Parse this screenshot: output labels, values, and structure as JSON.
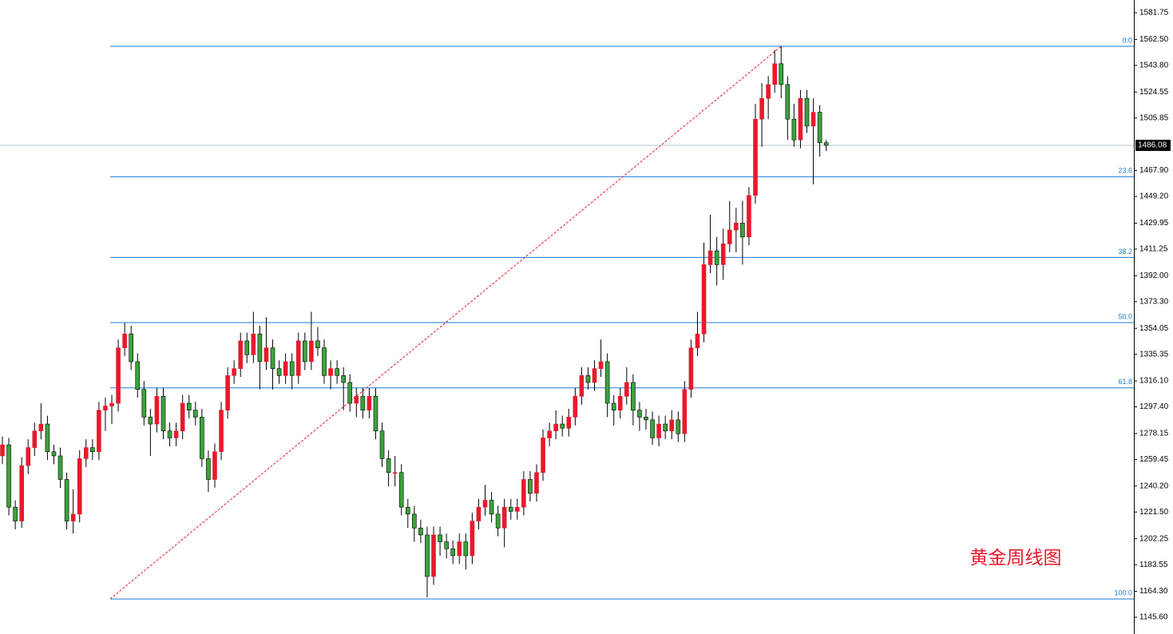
{
  "chart_data": {
    "type": "candlestick",
    "annotation": "黄金周线图",
    "up_color": "#e8192c",
    "down_color": "#3aa43a",
    "ylim": [
      1133.5,
      1590.97
    ],
    "yticks": [
      1581.75,
      {
        "value": 1562.5,
        "label": "1562.50"
      },
      {
        "value": 1543.8,
        "label": "1543.80"
      },
      1524.55,
      1505.85,
      1467.9,
      1449.2,
      1429.95,
      1411.25,
      {
        "value": 1392,
        "label": "1392.00"
      },
      {
        "value": 1373.3,
        "label": "1373.30"
      },
      1354.05,
      1335.35,
      {
        "value": 1316.1,
        "label": "1316.10"
      },
      {
        "value": 1297.4,
        "label": "1297.40"
      },
      1278.15,
      1259.45,
      {
        "value": 1240.2,
        "label": "1240.20"
      },
      {
        "value": 1221.5,
        "label": "1221.50"
      },
      1202.25,
      1183.55,
      {
        "value": 1164.3,
        "label": "1164.30"
      },
      {
        "value": 1145.6,
        "label": "1145.60"
      }
    ],
    "yticks_fix": [
      {
        "value": 1467.9,
        "label": "1467.90"
      },
      {
        "value": 1449.2,
        "label": "1449.20"
      }
    ],
    "current_price": 1486.08,
    "fib_levels": [
      {
        "value": 0,
        "label": "0.0"
      },
      23.6,
      38.2,
      {
        "value": 50,
        "label": "50.0"
      },
      61.8,
      {
        "value": 100,
        "label": "100.0"
      }
    ],
    "fib_prices": [
      1557.55,
      1463.45,
      1405.23,
      1358.18,
      1311.12,
      1158.8
    ],
    "ohlc": [
      [
        1262,
        1276,
        1256,
        1270
      ],
      [
        1270,
        1275,
        1219,
        1225
      ],
      [
        1225,
        1230,
        1209,
        1215
      ],
      [
        1215,
        1261,
        1210,
        1255
      ],
      [
        1255,
        1274,
        1249,
        1268
      ],
      [
        1268,
        1286,
        1262,
        1280
      ],
      [
        1280,
        1300,
        1274,
        1285
      ],
      [
        1285,
        1291,
        1259,
        1265
      ],
      [
        1265,
        1270,
        1256,
        1262
      ],
      [
        1262,
        1268,
        1239,
        1245
      ],
      [
        1245,
        1250,
        1209,
        1215
      ],
      [
        1215,
        1238,
        1206,
        1220
      ],
      [
        1220,
        1266,
        1214,
        1260
      ],
      [
        1260,
        1274,
        1254,
        1268
      ],
      [
        1268,
        1274,
        1259,
        1265
      ],
      [
        1265,
        1301,
        1259,
        1295
      ],
      [
        1295,
        1304,
        1280,
        1298
      ],
      [
        1298,
        1306,
        1285,
        1300
      ],
      [
        1300,
        1346,
        1294,
        1340
      ],
      [
        1340,
        1358,
        1334,
        1350
      ],
      [
        1350,
        1356,
        1324,
        1330
      ],
      [
        1330,
        1336,
        1304,
        1310
      ],
      [
        1310,
        1316,
        1284,
        1290
      ],
      [
        1290,
        1296,
        1262,
        1285
      ],
      [
        1285,
        1311,
        1279,
        1305
      ],
      [
        1305,
        1311,
        1274,
        1280
      ],
      [
        1280,
        1286,
        1269,
        1275
      ],
      [
        1275,
        1286,
        1269,
        1280
      ],
      [
        1280,
        1306,
        1274,
        1300
      ],
      [
        1300,
        1306,
        1289,
        1295
      ],
      [
        1295,
        1301,
        1284,
        1290
      ],
      [
        1290,
        1296,
        1254,
        1260
      ],
      [
        1260,
        1266,
        1236,
        1245
      ],
      [
        1245,
        1271,
        1239,
        1265
      ],
      [
        1265,
        1301,
        1259,
        1295
      ],
      [
        1295,
        1326,
        1289,
        1320
      ],
      [
        1320,
        1331,
        1314,
        1325
      ],
      [
        1325,
        1351,
        1319,
        1345
      ],
      [
        1345,
        1351,
        1329,
        1335
      ],
      [
        1335,
        1366,
        1329,
        1350
      ],
      [
        1350,
        1356,
        1310,
        1330
      ],
      [
        1330,
        1362,
        1324,
        1340
      ],
      [
        1340,
        1346,
        1310,
        1325
      ],
      [
        1325,
        1331,
        1314,
        1320
      ],
      [
        1320,
        1336,
        1314,
        1330
      ],
      [
        1330,
        1336,
        1310,
        1320
      ],
      [
        1320,
        1351,
        1314,
        1345
      ],
      [
        1345,
        1351,
        1324,
        1330
      ],
      [
        1330,
        1366,
        1324,
        1345
      ],
      [
        1345,
        1355,
        1334,
        1340
      ],
      [
        1340,
        1346,
        1314,
        1320
      ],
      [
        1320,
        1331,
        1310,
        1325
      ],
      [
        1325,
        1331,
        1314,
        1320
      ],
      [
        1320,
        1326,
        1295,
        1315
      ],
      [
        1315,
        1321,
        1294,
        1300
      ],
      [
        1300,
        1311,
        1290,
        1305
      ],
      [
        1305,
        1311,
        1289,
        1295
      ],
      [
        1295,
        1311,
        1289,
        1305
      ],
      [
        1305,
        1311,
        1274,
        1280
      ],
      [
        1280,
        1286,
        1254,
        1260
      ],
      [
        1260,
        1266,
        1240,
        1250
      ],
      [
        1250,
        1262,
        1240,
        1250
      ],
      [
        1250,
        1256,
        1219,
        1225
      ],
      [
        1225,
        1231,
        1210,
        1220
      ],
      [
        1220,
        1226,
        1200,
        1210
      ],
      [
        1210,
        1216,
        1199,
        1205
      ],
      [
        1205,
        1211,
        1160,
        1175
      ],
      [
        1175,
        1211,
        1169,
        1205
      ],
      [
        1205,
        1211,
        1190,
        1200
      ],
      [
        1200,
        1206,
        1188,
        1195
      ],
      [
        1195,
        1201,
        1184,
        1190
      ],
      [
        1190,
        1206,
        1184,
        1200
      ],
      [
        1200,
        1206,
        1180,
        1190
      ],
      [
        1190,
        1221,
        1184,
        1215
      ],
      [
        1215,
        1231,
        1209,
        1225
      ],
      [
        1225,
        1241,
        1219,
        1230
      ],
      [
        1230,
        1236,
        1214,
        1220
      ],
      [
        1220,
        1226,
        1204,
        1210
      ],
      [
        1210,
        1231,
        1196,
        1225
      ],
      [
        1225,
        1231,
        1216,
        1222
      ],
      [
        1222,
        1231,
        1216,
        1225
      ],
      [
        1225,
        1251,
        1219,
        1245
      ],
      [
        1245,
        1251,
        1229,
        1235
      ],
      [
        1235,
        1256,
        1229,
        1250
      ],
      [
        1250,
        1281,
        1244,
        1275
      ],
      [
        1275,
        1286,
        1269,
        1280
      ],
      [
        1280,
        1295,
        1274,
        1285
      ],
      [
        1285,
        1291,
        1276,
        1282
      ],
      [
        1282,
        1296,
        1276,
        1290
      ],
      [
        1290,
        1311,
        1284,
        1305
      ],
      [
        1305,
        1326,
        1299,
        1320
      ],
      [
        1320,
        1326,
        1310,
        1315
      ],
      [
        1315,
        1331,
        1309,
        1325
      ],
      [
        1325,
        1346,
        1319,
        1330
      ],
      [
        1330,
        1336,
        1290,
        1300
      ],
      [
        1300,
        1306,
        1284,
        1295
      ],
      [
        1295,
        1311,
        1289,
        1305
      ],
      [
        1305,
        1326,
        1299,
        1315
      ],
      [
        1315,
        1321,
        1284,
        1295
      ],
      [
        1295,
        1301,
        1280,
        1290
      ],
      [
        1290,
        1296,
        1281,
        1288
      ],
      [
        1288,
        1294,
        1270,
        1275
      ],
      [
        1275,
        1291,
        1269,
        1285
      ],
      [
        1285,
        1291,
        1274,
        1280
      ],
      [
        1280,
        1295,
        1274,
        1288
      ],
      [
        1288,
        1294,
        1272,
        1278
      ],
      [
        1278,
        1316,
        1272,
        1310
      ],
      [
        1310,
        1346,
        1304,
        1340
      ],
      [
        1340,
        1366,
        1334,
        1350
      ],
      [
        1350,
        1416,
        1344,
        1400
      ],
      [
        1400,
        1436,
        1394,
        1410
      ],
      [
        1410,
        1420,
        1385,
        1400
      ],
      [
        1400,
        1426,
        1389,
        1415
      ],
      [
        1415,
        1446,
        1409,
        1425
      ],
      [
        1425,
        1441,
        1409,
        1430
      ],
      [
        1430,
        1446,
        1400,
        1420
      ],
      [
        1420,
        1456,
        1414,
        1450
      ],
      [
        1450,
        1516,
        1444,
        1505
      ],
      [
        1505,
        1531,
        1485,
        1520
      ],
      [
        1520,
        1536,
        1505,
        1530
      ],
      [
        1530,
        1555,
        1524,
        1545
      ],
      [
        1545,
        1557.55,
        1520,
        1530
      ],
      [
        1530,
        1536,
        1490,
        1505
      ],
      [
        1505,
        1516,
        1485,
        1490
      ],
      [
        1490,
        1526,
        1484,
        1520
      ],
      [
        1520,
        1526,
        1495,
        1500
      ],
      [
        1500,
        1520,
        1458,
        1510
      ],
      [
        1510,
        1515,
        1478,
        1488
      ],
      [
        1488,
        1490,
        1482,
        1486.08
      ]
    ]
  }
}
